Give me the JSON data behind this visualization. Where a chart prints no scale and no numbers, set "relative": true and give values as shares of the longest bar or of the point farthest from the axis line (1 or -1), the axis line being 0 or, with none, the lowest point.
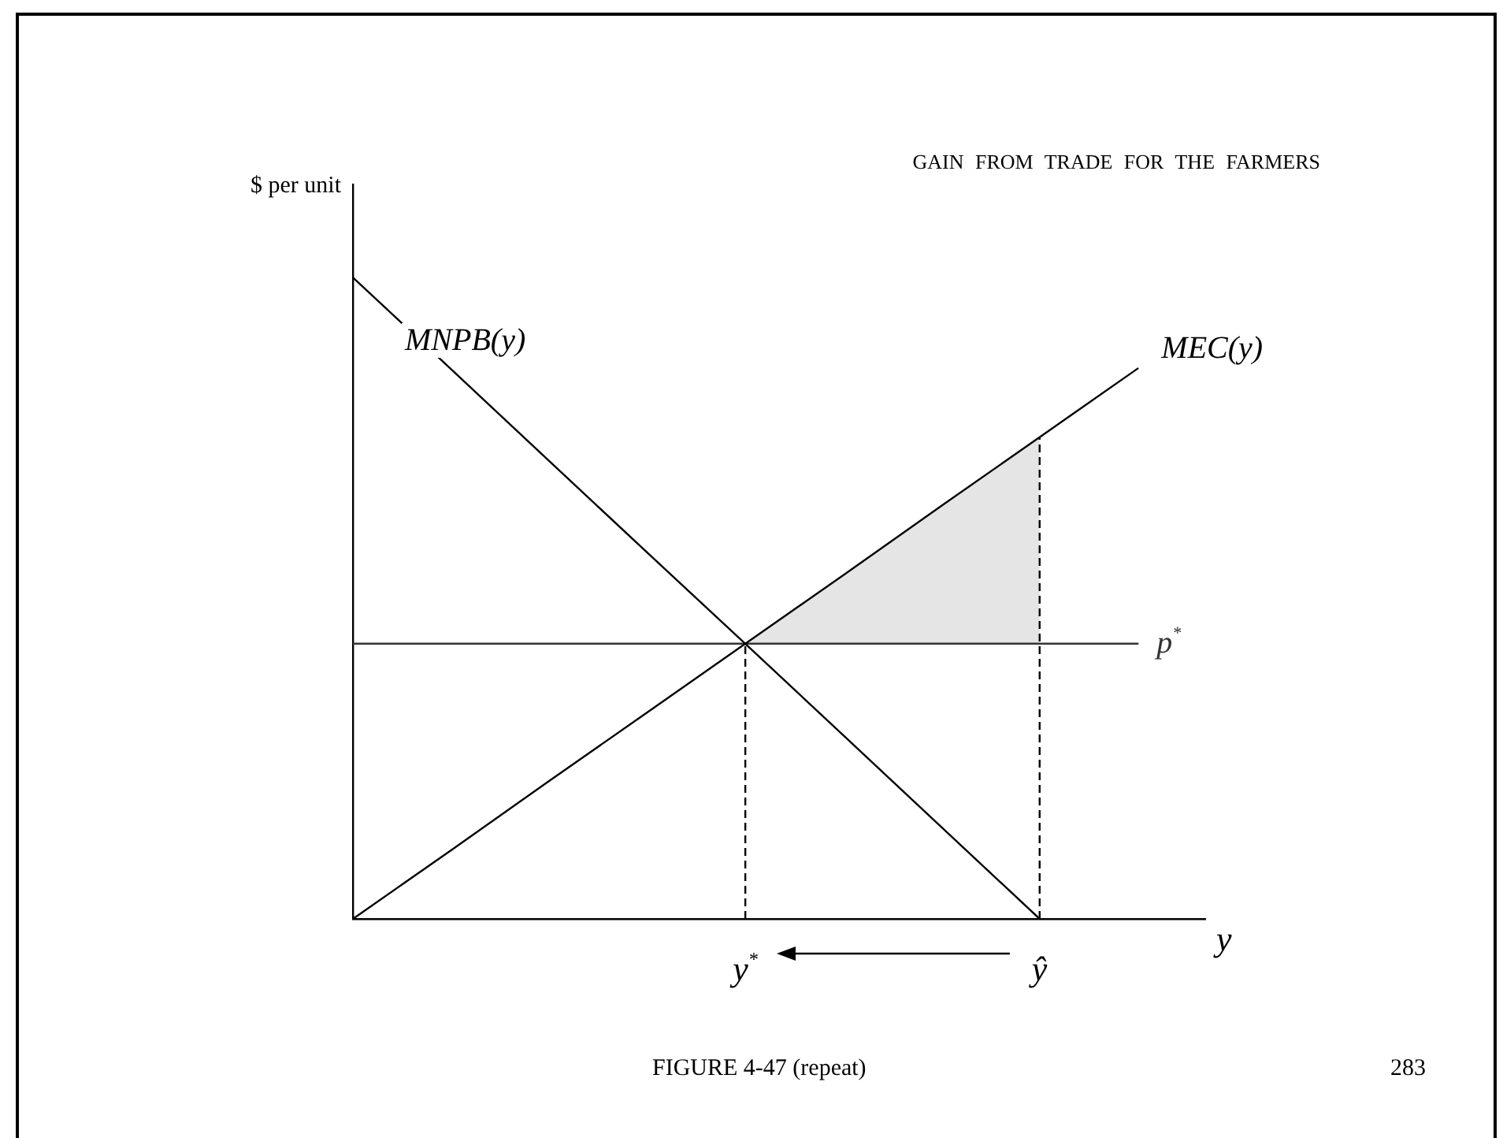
{
  "chart_data": {
    "type": "line",
    "title": "GAIN FROM TRADE FOR THE FARMERS",
    "xlabel": "y",
    "ylabel": "$ per unit",
    "annotations": [
      "FIGURE 4-47 (repeat)",
      "283"
    ],
    "relative": true,
    "legend": false,
    "marker": "none",
    "line_style": "solid",
    "categories": [
      null,
      null,
      null,
      null,
      "y$^{*}$",
      null,
      null,
      "ŷ",
      null
    ],
    "series": [
      {
        "name": "MNPB(y)",
        "color": "#000000",
        "values": [
          1,
          0.857,
          0.714,
          0.571,
          0.429,
          0.286,
          0.143,
          0,
          null
        ]
      },
      {
        "name": "MEC(y)",
        "color": "#000000",
        "values": [
          0,
          0.107,
          0.215,
          0.322,
          0.429,
          0.536,
          0.644,
          0.751,
          0.858
        ],
        "lower": [
          null,
          null,
          null,
          null,
          0.429,
          0.429,
          0.429,
          0.429,
          null
        ],
        "upper": [
          null,
          null,
          null,
          null,
          0.429,
          0.536,
          0.644,
          0.751,
          null
        ]
      },
      {
        "name": "p$^{*}$",
        "color": "#333333",
        "values": [
          0.429,
          0.429,
          0.429,
          0.429,
          0.429,
          0.429,
          0.429,
          0.429,
          0.429
        ]
      },
      {
        "color": "#000000",
        "x": [
          "y$^{*}$",
          "y$^{*}$"
        ],
        "values": [
          0,
          0.429
        ],
        "line_style": "dashed"
      },
      {
        "color": "#000000",
        "x": [
          "ŷ",
          "ŷ"
        ],
        "values": [
          0,
          0.751
        ],
        "line_style": "dashed"
      }
    ]
  }
}
